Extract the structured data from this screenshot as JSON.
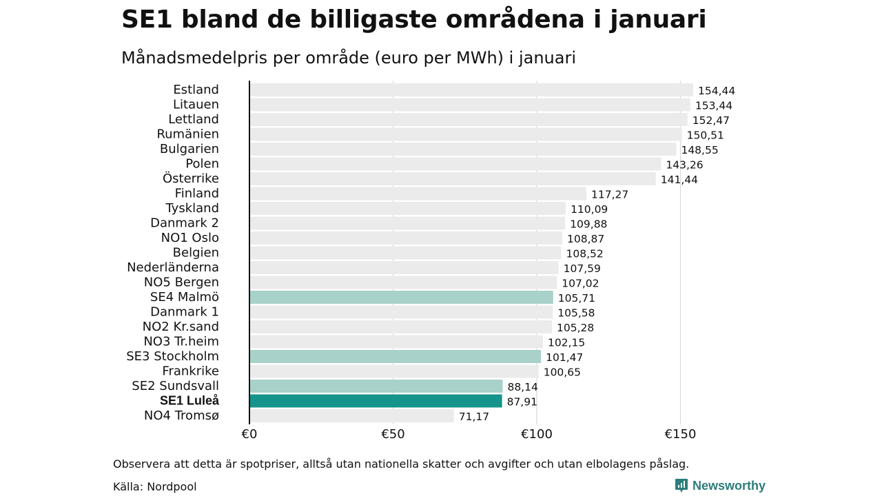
{
  "chart_data": {
    "type": "bar",
    "orientation": "horizontal",
    "title": "SE1 bland de billigaste områdena i januari",
    "subtitle": "Månadsmedelpris per område (euro per MWh) i januari",
    "categories": [
      "Estland",
      "Litauen",
      "Lettland",
      "Rumänien",
      "Bulgarien",
      "Polen",
      "Österrike",
      "Finland",
      "Tyskland",
      "Danmark  2",
      "NO1 Oslo",
      "Belgien",
      "Nederländerna",
      "NO5 Bergen",
      "SE4  Malmö",
      "Danmark  1",
      "NO2 Kr.sand",
      "NO3 Tr.heim",
      "SE3  Stockholm",
      "Frankrike",
      "SE2  Sundsvall",
      "SE1 Luleå",
      "NO4 Tromsø"
    ],
    "values": [
      154.44,
      153.44,
      152.47,
      150.51,
      148.55,
      143.26,
      141.44,
      117.27,
      110.09,
      109.88,
      108.87,
      108.52,
      107.59,
      107.02,
      105.71,
      105.58,
      105.28,
      102.15,
      101.47,
      100.65,
      88.14,
      87.91,
      71.17
    ],
    "value_labels": [
      "154,44",
      "153,44",
      "152,47",
      "150,51",
      "148,55",
      "143,26",
      "141,44",
      "117,27",
      "110,09",
      "109,88",
      "108,87",
      "108,52",
      "107,59",
      "107,02",
      "105,71",
      "105,58",
      "105,28",
      "102,15",
      "101,47",
      "100,65",
      "88,14",
      "87,91",
      "71,17"
    ],
    "highlight": [
      "default",
      "default",
      "default",
      "default",
      "default",
      "default",
      "default",
      "default",
      "default",
      "default",
      "default",
      "default",
      "default",
      "default",
      "light",
      "default",
      "default",
      "default",
      "light",
      "default",
      "light",
      "strong",
      "default"
    ],
    "colors": {
      "default": "#ebebeb",
      "light": "#a8d1ca",
      "strong": "#14948a",
      "grid": "#d9d9d9",
      "axis": "#111111"
    },
    "xlim": [
      0,
      155
    ],
    "xticks": [
      0,
      50,
      100,
      150
    ],
    "xtick_labels": [
      "€0",
      "€50",
      "€100",
      "€150"
    ],
    "xlabel": "",
    "ylabel": ""
  },
  "footnote": "Observera att detta är spotpriser, alltså utan nationella skatter och avgifter och utan elbolagens påslag.",
  "source": "Källa: Nordpool",
  "brand": "Newsworthy",
  "brand_color": "#2d7d7a"
}
